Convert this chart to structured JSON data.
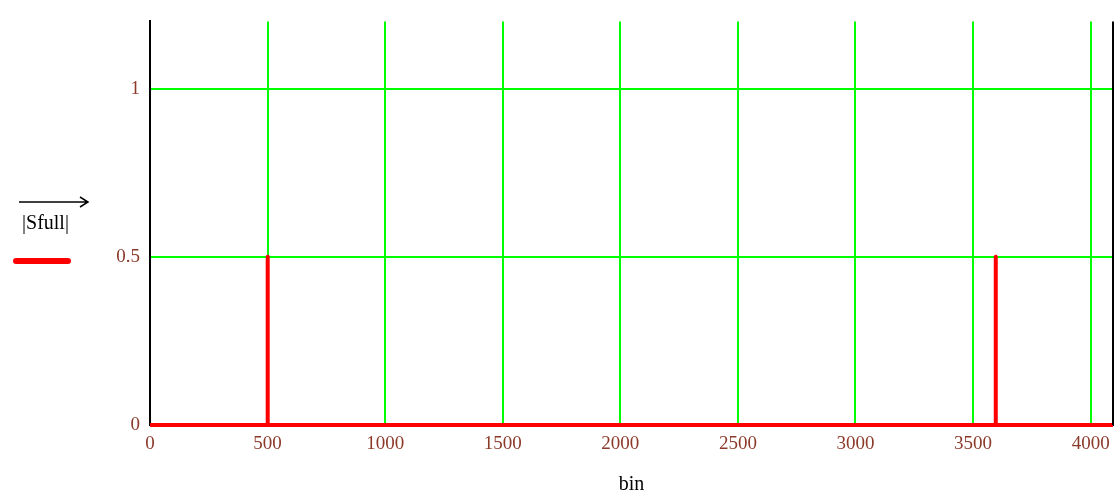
{
  "chart_data": {
    "type": "line",
    "xlabel": "bin",
    "ylabel": "|Sfull|",
    "x": [
      0,
      499,
      500,
      501,
      3595,
      3596,
      3597,
      4095
    ],
    "series": [
      {
        "color": "#ff0000",
        "values": [
          0,
          0,
          0.5,
          0,
          0,
          0.5,
          0,
          0
        ]
      }
    ],
    "xlim": [
      0,
      4095
    ],
    "xticks": [
      0,
      500,
      1000,
      1500,
      2000,
      2500,
      3000,
      3500,
      4000
    ],
    "ylim": [
      0,
      1.2
    ],
    "yticks": [
      0,
      0.5,
      1
    ],
    "grid": true,
    "marker": "none",
    "line_style": "solid"
  }
}
